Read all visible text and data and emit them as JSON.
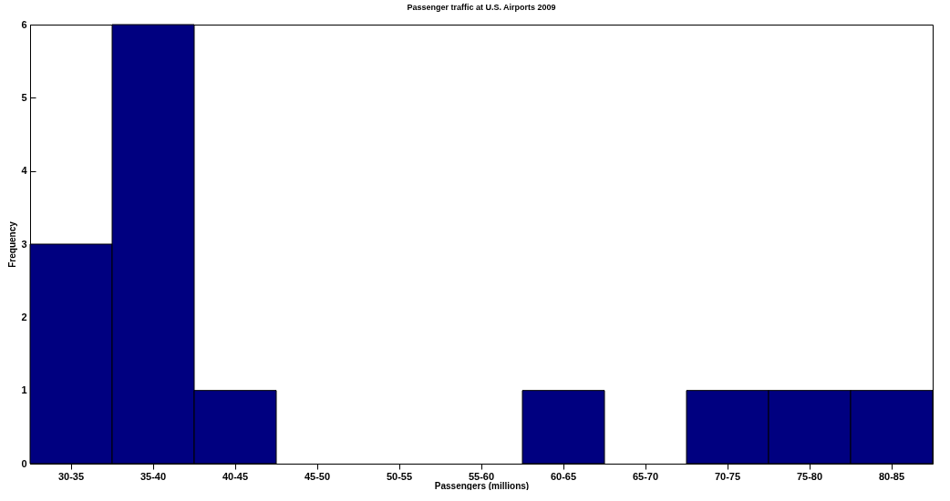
{
  "chart_data": {
    "type": "bar",
    "title": "Passenger traffic at U.S. Airports 2009",
    "xlabel": "Passengers (millions)",
    "ylabel": "Frequency",
    "categories": [
      "30-35",
      "35-40",
      "40-45",
      "45-50",
      "50-55",
      "55-60",
      "60-65",
      "65-70",
      "70-75",
      "75-80",
      "80-85"
    ],
    "values": [
      3,
      6,
      1,
      0,
      0,
      0,
      1,
      0,
      1,
      1,
      1
    ],
    "color": "#000080",
    "ylim": [
      0,
      6
    ],
    "yticks": [
      0,
      1,
      2,
      3,
      4,
      5,
      6
    ],
    "grid": false
  }
}
